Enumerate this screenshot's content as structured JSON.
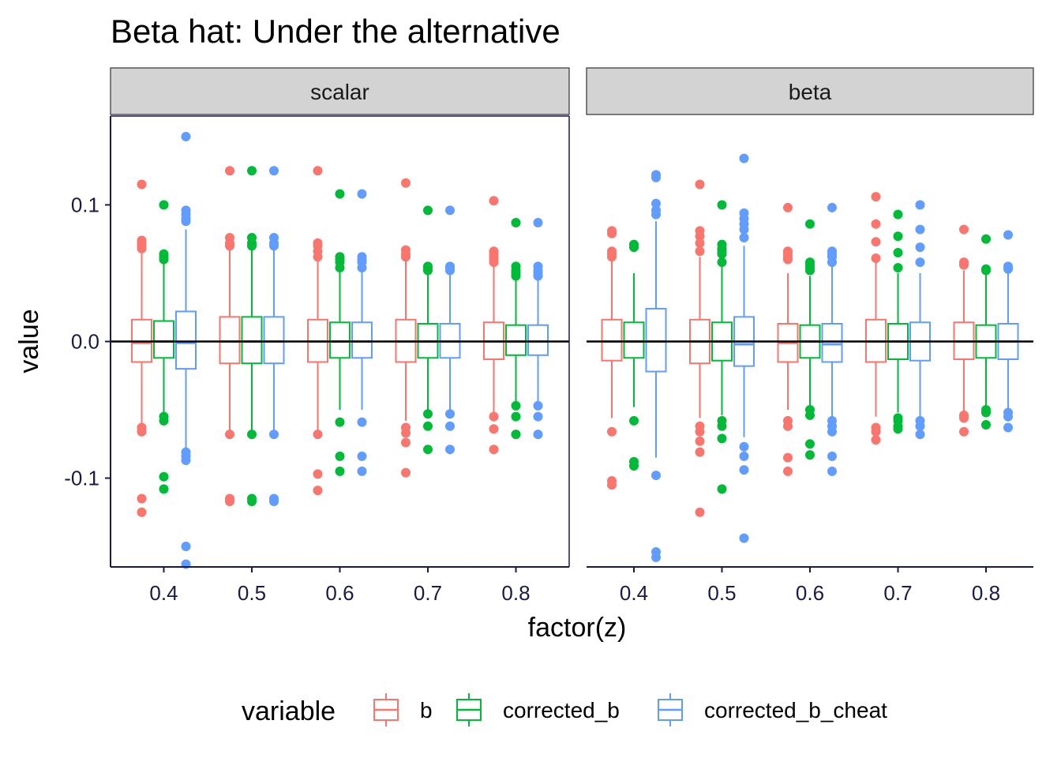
{
  "chart_data": {
    "type": "boxplot",
    "title": "Beta hat: Under the alternative",
    "xlabel": "factor(z)",
    "ylabel": "value",
    "ylim": [
      -0.165,
      0.165
    ],
    "y_ticks": [
      0.1,
      0.0,
      -0.1
    ],
    "y_tick_labels": [
      "0.1",
      "0.0",
      "-0.1"
    ],
    "categories": [
      "0.4",
      "0.5",
      "0.6",
      "0.7",
      "0.8"
    ],
    "reference_line": 0.0,
    "legend": {
      "title": "variable",
      "position": "bottom",
      "entries": [
        "b",
        "corrected_b",
        "corrected_b_cheat"
      ]
    },
    "colors": {
      "b": "#F8766D",
      "corrected_b": "#00BA38",
      "corrected_b_cheat": "#619CFF"
    },
    "panels": [
      {
        "label": "scalar",
        "series": [
          {
            "name": "b",
            "boxes": [
              {
                "min": -0.06,
                "q1": -0.015,
                "median": -0.001,
                "q3": 0.016,
                "max": 0.066,
                "outliers": [
                  0.115,
                  0.074,
                  0.072,
                  0.07,
                  0.068,
                  -0.063,
                  -0.066,
                  -0.115,
                  -0.125
                ]
              },
              {
                "min": -0.066,
                "q1": -0.016,
                "median": 0.0,
                "q3": 0.018,
                "max": 0.068,
                "outliers": [
                  0.125,
                  0.076,
                  0.072,
                  0.07,
                  -0.068,
                  -0.115,
                  -0.117
                ]
              },
              {
                "min": -0.066,
                "q1": -0.015,
                "median": 0.0,
                "q3": 0.016,
                "max": 0.06,
                "outliers": [
                  0.125,
                  0.072,
                  0.07,
                  0.066,
                  0.062,
                  -0.068,
                  -0.097,
                  -0.109
                ]
              },
              {
                "min": -0.058,
                "q1": -0.015,
                "median": 0.0,
                "q3": 0.016,
                "max": 0.06,
                "outliers": [
                  0.116,
                  0.067,
                  0.064,
                  0.062,
                  -0.063,
                  -0.067,
                  -0.074,
                  -0.096
                ]
              },
              {
                "min": -0.052,
                "q1": -0.013,
                "median": 0.0,
                "q3": 0.014,
                "max": 0.055,
                "outliers": [
                  0.103,
                  0.066,
                  0.064,
                  0.062,
                  0.06,
                  0.058,
                  -0.055,
                  -0.064,
                  -0.079
                ]
              }
            ]
          },
          {
            "name": "corrected_b",
            "boxes": [
              {
                "min": -0.054,
                "q1": -0.012,
                "median": 0.0,
                "q3": 0.015,
                "max": 0.058,
                "outliers": [
                  0.1,
                  0.064,
                  0.062,
                  0.06,
                  -0.055,
                  -0.058,
                  -0.099,
                  -0.108
                ]
              },
              {
                "min": -0.066,
                "q1": -0.016,
                "median": 0.0,
                "q3": 0.018,
                "max": 0.068,
                "outliers": [
                  0.125,
                  0.076,
                  0.072,
                  0.07,
                  -0.068,
                  -0.115,
                  -0.117
                ]
              },
              {
                "min": -0.05,
                "q1": -0.012,
                "median": 0.0,
                "q3": 0.014,
                "max": 0.052,
                "outliers": [
                  0.108,
                  0.062,
                  0.06,
                  0.058,
                  0.054,
                  -0.059,
                  -0.084,
                  -0.095
                ]
              },
              {
                "min": -0.05,
                "q1": -0.012,
                "median": 0.0,
                "q3": 0.013,
                "max": 0.05,
                "outliers": [
                  0.096,
                  0.055,
                  0.054,
                  0.052,
                  -0.053,
                  -0.062,
                  -0.079
                ]
              },
              {
                "min": -0.044,
                "q1": -0.01,
                "median": 0.0,
                "q3": 0.012,
                "max": 0.045,
                "outliers": [
                  0.087,
                  0.055,
                  0.052,
                  0.05,
                  0.048,
                  -0.047,
                  -0.055,
                  -0.068
                ]
              }
            ]
          },
          {
            "name": "corrected_b_cheat",
            "boxes": [
              {
                "min": -0.08,
                "q1": -0.02,
                "median": -0.001,
                "q3": 0.022,
                "max": 0.082,
                "outliers": [
                  0.15,
                  0.096,
                  0.093,
                  0.09,
                  0.088,
                  -0.081,
                  -0.084,
                  -0.087,
                  -0.15,
                  -0.163
                ]
              },
              {
                "min": -0.066,
                "q1": -0.016,
                "median": 0.0,
                "q3": 0.018,
                "max": 0.068,
                "outliers": [
                  0.125,
                  0.076,
                  0.072,
                  0.07,
                  -0.068,
                  -0.115,
                  -0.117
                ]
              },
              {
                "min": -0.05,
                "q1": -0.012,
                "median": 0.0,
                "q3": 0.014,
                "max": 0.052,
                "outliers": [
                  0.108,
                  0.062,
                  0.06,
                  0.058,
                  0.054,
                  -0.059,
                  -0.084,
                  -0.095
                ]
              },
              {
                "min": -0.05,
                "q1": -0.012,
                "median": 0.0,
                "q3": 0.013,
                "max": 0.05,
                "outliers": [
                  0.096,
                  0.055,
                  0.054,
                  0.052,
                  -0.053,
                  -0.062,
                  -0.079
                ]
              },
              {
                "min": -0.044,
                "q1": -0.01,
                "median": 0.0,
                "q3": 0.012,
                "max": 0.045,
                "outliers": [
                  0.087,
                  0.055,
                  0.052,
                  0.05,
                  0.048,
                  -0.047,
                  -0.055,
                  -0.068
                ]
              }
            ]
          }
        ]
      },
      {
        "label": "beta",
        "series": [
          {
            "name": "b",
            "boxes": [
              {
                "min": -0.056,
                "q1": -0.014,
                "median": 0.0,
                "q3": 0.016,
                "max": 0.06,
                "outliers": [
                  0.081,
                  0.079,
                  0.066,
                  0.064,
                  0.062,
                  -0.066,
                  -0.102,
                  -0.105
                ]
              },
              {
                "min": -0.056,
                "q1": -0.016,
                "median": 0.0,
                "q3": 0.016,
                "max": 0.062,
                "outliers": [
                  0.115,
                  0.081,
                  0.077,
                  0.072,
                  0.066,
                  -0.062,
                  -0.066,
                  -0.073,
                  -0.081,
                  -0.125
                ]
              },
              {
                "min": -0.05,
                "q1": -0.015,
                "median": -0.001,
                "q3": 0.013,
                "max": 0.05,
                "outliers": [
                  0.098,
                  0.066,
                  0.064,
                  0.062,
                  0.06,
                  -0.058,
                  -0.062,
                  -0.085,
                  -0.095
                ]
              },
              {
                "min": -0.055,
                "q1": -0.015,
                "median": 0.0,
                "q3": 0.016,
                "max": 0.058,
                "outliers": [
                  0.106,
                  0.086,
                  0.073,
                  0.061,
                  -0.063,
                  -0.066,
                  -0.072
                ]
              },
              {
                "min": -0.052,
                "q1": -0.013,
                "median": 0.0,
                "q3": 0.014,
                "max": 0.052,
                "outliers": [
                  0.082,
                  0.058,
                  0.056,
                  -0.054,
                  -0.056,
                  -0.066
                ]
              }
            ]
          },
          {
            "name": "corrected_b",
            "boxes": [
              {
                "min": -0.048,
                "q1": -0.012,
                "median": 0.0,
                "q3": 0.014,
                "max": 0.05,
                "outliers": [
                  0.071,
                  0.069,
                  -0.058,
                  -0.088,
                  -0.091
                ]
              },
              {
                "min": -0.054,
                "q1": -0.014,
                "median": 0.0,
                "q3": 0.014,
                "max": 0.055,
                "outliers": [
                  0.1,
                  0.071,
                  0.068,
                  0.066,
                  0.064,
                  0.058,
                  -0.058,
                  -0.062,
                  -0.071,
                  -0.108
                ]
              },
              {
                "min": -0.048,
                "q1": -0.012,
                "median": 0.0,
                "q3": 0.012,
                "max": 0.048,
                "outliers": [
                  0.086,
                  0.058,
                  0.056,
                  0.054,
                  0.052,
                  -0.05,
                  -0.054,
                  -0.075,
                  -0.083
                ]
              },
              {
                "min": -0.052,
                "q1": -0.013,
                "median": 0.0,
                "q3": 0.013,
                "max": 0.05,
                "outliers": [
                  0.093,
                  0.077,
                  0.065,
                  0.054,
                  -0.056,
                  -0.058,
                  -0.062,
                  -0.064
                ]
              },
              {
                "min": -0.048,
                "q1": -0.012,
                "median": 0.0,
                "q3": 0.012,
                "max": 0.05,
                "outliers": [
                  0.075,
                  0.053,
                  0.052,
                  -0.05,
                  -0.052,
                  -0.061
                ]
              }
            ]
          },
          {
            "name": "corrected_b_cheat",
            "boxes": [
              {
                "min": -0.085,
                "q1": -0.022,
                "median": 0.0,
                "q3": 0.024,
                "max": 0.088,
                "outliers": [
                  0.122,
                  0.12,
                  0.101,
                  0.096,
                  0.093,
                  -0.098,
                  -0.154,
                  -0.158
                ]
              },
              {
                "min": -0.07,
                "q1": -0.018,
                "median": -0.002,
                "q3": 0.018,
                "max": 0.07,
                "outliers": [
                  0.134,
                  0.094,
                  0.09,
                  0.086,
                  0.082,
                  0.076,
                  -0.077,
                  -0.084,
                  -0.094,
                  -0.144
                ]
              },
              {
                "min": -0.055,
                "q1": -0.015,
                "median": -0.002,
                "q3": 0.013,
                "max": 0.055,
                "outliers": [
                  0.098,
                  0.066,
                  0.064,
                  0.062,
                  0.058,
                  -0.058,
                  -0.062,
                  -0.066,
                  -0.084,
                  -0.095
                ]
              },
              {
                "min": -0.055,
                "q1": -0.014,
                "median": 0.0,
                "q3": 0.014,
                "max": 0.05,
                "outliers": [
                  0.1,
                  0.082,
                  0.069,
                  0.058,
                  -0.058,
                  -0.062,
                  -0.068
                ]
              },
              {
                "min": -0.05,
                "q1": -0.013,
                "median": 0.0,
                "q3": 0.013,
                "max": 0.05,
                "outliers": [
                  0.078,
                  0.055,
                  0.053,
                  -0.052,
                  -0.055,
                  -0.063
                ]
              }
            ]
          }
        ]
      }
    ]
  }
}
